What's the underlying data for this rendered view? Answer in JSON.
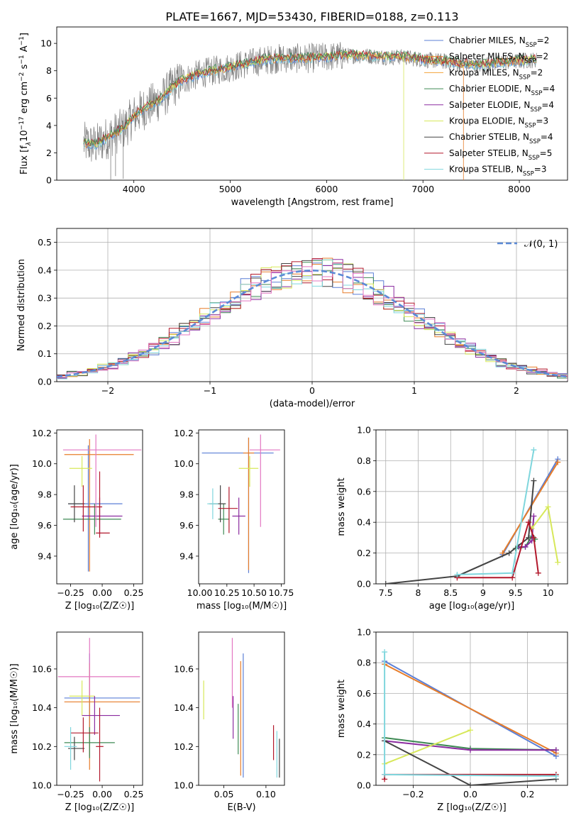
{
  "figure_title": "PLATE=1667, MJD=53430, FIBERID=0188, z=0.113",
  "colors": {
    "Chabrier MILES": "#5b7fd6",
    "Salpeter MILES": "#e77d2a",
    "Kroupa MILES": "#f2a33a",
    "Chabrier ELODIE": "#3f8a55",
    "Salpeter ELODIE": "#8b2ca0",
    "Kroupa ELODIE": "#d7e85a",
    "Chabrier STELIB": "#444444",
    "Salpeter STELIB": "#b2182b",
    "Kroupa STELIB": "#7fd6dd",
    "data": "#7f7f7f",
    "pink": "#e377c2",
    "normal_curve": "#5b8ad6"
  },
  "chart_data": [
    {
      "id": "spectrum",
      "type": "line",
      "xlabel": "wavelength [Angstrom, rest frame]",
      "ylabel_parts": [
        "Flux [f",
        "λ",
        "10",
        "−17",
        " erg cm",
        "−2",
        " s",
        "−1",
        " A",
        "−1",
        "]"
      ],
      "xlim": [
        3200,
        8500
      ],
      "ylim": [
        0,
        11.2
      ],
      "xticks": [
        4000,
        5000,
        6000,
        7000,
        8000
      ],
      "yticks": [
        0,
        2,
        4,
        6,
        8,
        10
      ],
      "legend_position": "top-right",
      "legend": [
        {
          "name": "Chabrier MILES",
          "nssp": "2"
        },
        {
          "name": "Salpeter MILES",
          "nssp": "2"
        },
        {
          "name": "Kroupa MILES",
          "nssp": "2"
        },
        {
          "name": "Chabrier ELODIE",
          "nssp": "4"
        },
        {
          "name": "Salpeter ELODIE",
          "nssp": "4"
        },
        {
          "name": "Kroupa ELODIE",
          "nssp": "3"
        },
        {
          "name": "Chabrier STELIB",
          "nssp": "4"
        },
        {
          "name": "Salpeter STELIB",
          "nssp": "5"
        },
        {
          "name": "Kroupa STELIB",
          "nssp": "3"
        }
      ],
      "nssp_label": "SSP",
      "continuum": [
        [
          3480,
          2.7
        ],
        [
          3600,
          2.55
        ],
        [
          3700,
          3.0
        ],
        [
          3800,
          3.4
        ],
        [
          3900,
          3.8
        ],
        [
          4000,
          4.7
        ],
        [
          4100,
          5.2
        ],
        [
          4200,
          5.6
        ],
        [
          4300,
          6.0
        ],
        [
          4400,
          6.8
        ],
        [
          4500,
          7.3
        ],
        [
          4700,
          7.8
        ],
        [
          4900,
          8.1
        ],
        [
          5100,
          8.4
        ],
        [
          5300,
          8.7
        ],
        [
          5500,
          8.9
        ],
        [
          5800,
          8.9
        ],
        [
          6000,
          9.0
        ],
        [
          6200,
          9.1
        ],
        [
          6400,
          9.1
        ],
        [
          6600,
          9.0
        ],
        [
          6800,
          9.0
        ],
        [
          7000,
          8.8
        ],
        [
          7200,
          8.7
        ],
        [
          7400,
          8.5
        ],
        [
          7600,
          8.4
        ],
        [
          7800,
          8.6
        ],
        [
          8000,
          8.7
        ],
        [
          8180,
          8.8
        ]
      ]
    },
    {
      "id": "residuals",
      "type": "histogram",
      "xlabel": "(data-model)/error",
      "ylabel": "Normed distribution",
      "xlim": [
        -2.5,
        2.5
      ],
      "ylim": [
        0,
        0.55
      ],
      "xticks": [
        -2,
        -1,
        0,
        1,
        2
      ],
      "xtick_labels": [
        "−2",
        "−1",
        "0",
        "1",
        "2"
      ],
      "yticks": [
        0,
        0.1,
        0.2,
        0.3,
        0.4,
        0.5
      ],
      "legend_label": "𝒩(0, 1)",
      "legend_position": "top-right",
      "grid": true
    },
    {
      "id": "age_vs_Z",
      "type": "errorbar",
      "xlabel": "Z [log₁₀(Z/Z☉)]",
      "ylabel": "age  [log₁₀(age/yr)]",
      "xlim": [
        -0.36,
        0.32
      ],
      "ylim": [
        9.22,
        10.22
      ],
      "xticks": [
        -0.25,
        0.0,
        0.25
      ],
      "xtick_labels": [
        "−0.25",
        "0.00",
        "0.25"
      ],
      "yticks": [
        9.4,
        9.6,
        9.8,
        10.0,
        10.2
      ],
      "points": [
        {
          "series": "Chabrier MILES",
          "x": -0.11,
          "xerr": [
            0.16,
            0.27
          ],
          "y": 9.74,
          "yerr": [
            0.44,
            0.38
          ]
        },
        {
          "series": "Salpeter MILES",
          "x": -0.1,
          "xerr": [
            0.2,
            0.35
          ],
          "y": 10.06,
          "yerr": [
            0.76,
            0.1
          ]
        },
        {
          "series": "Chabrier ELODIE",
          "x": -0.06,
          "xerr": [
            0.25,
            0.21
          ],
          "y": 9.64,
          "yerr": [
            0.1,
            0.1
          ]
        },
        {
          "series": "Salpeter ELODIE",
          "x": -0.02,
          "xerr": [
            0.14,
            0.18
          ],
          "y": 9.66,
          "yerr": [
            0.12,
            0.12
          ]
        },
        {
          "series": "Kroupa ELODIE",
          "x": -0.16,
          "xerr": [
            0.1,
            0.08
          ],
          "y": 9.97,
          "yerr": [
            0.12,
            0.08
          ]
        },
        {
          "series": "Chabrier STELIB",
          "x": -0.22,
          "xerr": [
            0.05,
            0.08
          ],
          "y": 9.74,
          "yerr": [
            0.12,
            0.12
          ]
        },
        {
          "series": "Salpeter STELIB",
          "x": -0.02,
          "xerr": [
            0.03,
            0.08
          ],
          "y": 9.55,
          "yerr": [
            0.03,
            0.4
          ]
        },
        {
          "series": "Salpeter STELIB",
          "x": -0.15,
          "xerr": [
            0.1,
            0.15
          ],
          "y": 9.72,
          "yerr": [
            0.16,
            0.14
          ]
        },
        {
          "series": "pink",
          "x": -0.05,
          "xerr": [
            0.26,
            0.36
          ],
          "y": 10.09,
          "yerr": [
            0.5,
            0.1
          ]
        }
      ]
    },
    {
      "id": "age_vs_mass",
      "type": "errorbar",
      "xlabel": "mass [log₁₀(M/M☉)]",
      "xlim": [
        9.99,
        10.78
      ],
      "ylim": [
        9.22,
        10.22
      ],
      "xticks": [
        10.0,
        10.25,
        10.5,
        10.75
      ],
      "xtick_labels": [
        "10.00",
        "10.25",
        "10.50",
        "10.75"
      ],
      "yticks": [
        9.4,
        9.6,
        9.8,
        10.0,
        10.2
      ],
      "points": [
        {
          "series": "Chabrier MILES",
          "x": 10.45,
          "xerr": [
            0.43,
            0.23
          ],
          "y": 10.07,
          "yerr": [
            0.78,
            0.1
          ]
        },
        {
          "series": "Salpeter MILES",
          "x": 10.45,
          "xerr": [
            0.05,
            0.05
          ],
          "y": 10.07,
          "yerr": [
            0.76,
            0.1
          ]
        },
        {
          "series": "Kroupa ELODIE",
          "x": 10.46,
          "xerr": [
            0.1,
            0.08
          ],
          "y": 9.97,
          "yerr": [
            0.12,
            0.08
          ]
        },
        {
          "series": "Salpeter ELODIE",
          "x": 10.36,
          "xerr": [
            0.06,
            0.06
          ],
          "y": 9.66,
          "yerr": [
            0.12,
            0.12
          ]
        },
        {
          "series": "Chabrier ELODIE",
          "x": 10.22,
          "xerr": [
            0.05,
            0.05
          ],
          "y": 9.64,
          "yerr": [
            0.1,
            0.1
          ]
        },
        {
          "series": "Chabrier STELIB",
          "x": 10.19,
          "xerr": [
            0.1,
            0.05
          ],
          "y": 9.74,
          "yerr": [
            0.12,
            0.12
          ]
        },
        {
          "series": "Salpeter STELIB",
          "x": 10.27,
          "xerr": [
            0.1,
            0.08
          ],
          "y": 9.71,
          "yerr": [
            0.16,
            0.14
          ]
        },
        {
          "series": "Kroupa STELIB",
          "x": 10.12,
          "xerr": [
            0.05,
            0.05
          ],
          "y": 9.74,
          "yerr": [
            0.1,
            0.1
          ]
        },
        {
          "series": "pink",
          "x": 10.56,
          "xerr": [
            0.1,
            0.18
          ],
          "y": 10.09,
          "yerr": [
            0.5,
            0.1
          ]
        }
      ]
    },
    {
      "id": "massweight_vs_age",
      "type": "line",
      "xlabel": "age  [log₁₀(age/yr)]",
      "ylabel": "mass weight",
      "xlim": [
        7.35,
        10.3
      ],
      "ylim": [
        0,
        1.0
      ],
      "xticks": [
        7.5,
        8.0,
        8.5,
        9.0,
        9.5,
        10.0
      ],
      "yticks": [
        0,
        0.2,
        0.4,
        0.6,
        0.8,
        1.0
      ],
      "grid": true,
      "series": [
        {
          "name": "Chabrier MILES",
          "points": [
            [
              9.3,
              0.19
            ],
            [
              10.15,
              0.81
            ]
          ]
        },
        {
          "name": "Salpeter MILES",
          "points": [
            [
              9.3,
              0.2
            ],
            [
              10.15,
              0.79
            ]
          ]
        },
        {
          "name": "Chabrier ELODIE",
          "points": [
            [
              9.5,
              0.23
            ],
            [
              9.65,
              0.24
            ],
            [
              9.75,
              0.31
            ],
            [
              9.8,
              0.29
            ]
          ]
        },
        {
          "name": "Salpeter ELODIE",
          "points": [
            [
              9.55,
              0.24
            ],
            [
              9.65,
              0.24
            ],
            [
              9.75,
              0.28
            ],
            [
              9.78,
              0.44
            ]
          ]
        },
        {
          "name": "Kroupa ELODIE",
          "points": [
            [
              9.75,
              0.36
            ],
            [
              10.0,
              0.5
            ],
            [
              10.15,
              0.14
            ]
          ]
        },
        {
          "name": "Chabrier STELIB",
          "points": [
            [
              7.5,
              0.0
            ],
            [
              8.6,
              0.05
            ],
            [
              9.4,
              0.2
            ],
            [
              9.7,
              0.3
            ],
            [
              9.78,
              0.67
            ]
          ]
        },
        {
          "name": "Salpeter STELIB",
          "points": [
            [
              8.6,
              0.04
            ],
            [
              9.45,
              0.04
            ],
            [
              9.7,
              0.4
            ],
            [
              9.78,
              0.3
            ],
            [
              9.85,
              0.07
            ]
          ]
        },
        {
          "name": "Kroupa STELIB",
          "points": [
            [
              8.6,
              0.06
            ],
            [
              9.45,
              0.07
            ],
            [
              9.78,
              0.87
            ]
          ]
        }
      ]
    },
    {
      "id": "mass_vs_Z",
      "type": "errorbar",
      "xlabel": "Z [log₁₀(Z/Z☉)]",
      "ylabel": "mass [log₁₀(M/M☉)]",
      "xlim": [
        -0.36,
        0.32
      ],
      "ylim": [
        10.0,
        10.79
      ],
      "xticks": [
        -0.25,
        0.0,
        0.25
      ],
      "xtick_labels": [
        "−0.25",
        "0.00",
        "0.25"
      ],
      "yticks": [
        10.0,
        10.2,
        10.4,
        10.6
      ],
      "points": [
        {
          "series": "Chabrier MILES",
          "x": -0.1,
          "xerr": [
            0.2,
            0.4
          ],
          "y": 10.45,
          "yerr": [
            0.3,
            0.23
          ]
        },
        {
          "series": "Salpeter MILES",
          "x": -0.1,
          "xerr": [
            0.2,
            0.4
          ],
          "y": 10.43,
          "yerr": [
            0.35,
            0.2
          ]
        },
        {
          "series": "Kroupa ELODIE",
          "x": -0.16,
          "xerr": [
            0.1,
            0.1
          ],
          "y": 10.46,
          "yerr": [
            0.1,
            0.08
          ]
        },
        {
          "series": "Salpeter ELODIE",
          "x": -0.06,
          "xerr": [
            0.1,
            0.2
          ],
          "y": 10.36,
          "yerr": [
            0.1,
            0.1
          ]
        },
        {
          "series": "Chabrier ELODIE",
          "x": -0.1,
          "xerr": [
            0.2,
            0.2
          ],
          "y": 10.22,
          "yerr": [
            0.08,
            0.08
          ]
        },
        {
          "series": "Chabrier STELIB",
          "x": -0.22,
          "xerr": [
            0.05,
            0.08
          ],
          "y": 10.19,
          "yerr": [
            0.06,
            0.06
          ]
        },
        {
          "series": "Salpeter STELIB",
          "x": -0.15,
          "xerr": [
            0.1,
            0.12
          ],
          "y": 10.27,
          "yerr": [
            0.1,
            0.08
          ]
        },
        {
          "series": "Salpeter STELIB",
          "x": -0.02,
          "xerr": [
            0.03,
            0.03
          ],
          "y": 10.2,
          "yerr": [
            0.18,
            0.2
          ]
        },
        {
          "series": "Kroupa STELIB",
          "x": -0.25,
          "xerr": [
            0.05,
            0.05
          ],
          "y": 10.2,
          "yerr": [
            0.12,
            0.1
          ]
        },
        {
          "series": "pink",
          "x": -0.1,
          "xerr": [
            0.25,
            0.4
          ],
          "y": 10.56,
          "yerr": [
            0.1,
            0.2
          ]
        }
      ]
    },
    {
      "id": "mass_vs_ebv",
      "type": "errorbar",
      "xlabel": "E(B-V)",
      "xlim": [
        0.02,
        0.122
      ],
      "ylim": [
        10.0,
        10.79
      ],
      "xticks": [
        0.05,
        0.1
      ],
      "xtick_labels": [
        "0.05",
        "0.10"
      ],
      "yticks": [
        10.0,
        10.2,
        10.4,
        10.6
      ],
      "points": [
        {
          "series": "Kroupa ELODIE",
          "x": 0.026,
          "y": 10.44,
          "yerr": [
            0.1,
            0.1
          ]
        },
        {
          "series": "pink",
          "x": 0.06,
          "y": 10.56,
          "yerr": [
            0.16,
            0.2
          ]
        },
        {
          "series": "Salpeter ELODIE",
          "x": 0.061,
          "y": 10.36,
          "yerr": [
            0.12,
            0.1
          ]
        },
        {
          "series": "Chabrier ELODIE",
          "x": 0.067,
          "y": 10.29,
          "yerr": [
            0.13,
            0.13
          ]
        },
        {
          "series": "Salpeter MILES",
          "x": 0.07,
          "y": 10.35,
          "yerr": [
            0.3,
            0.29
          ]
        },
        {
          "series": "Chabrier MILES",
          "x": 0.073,
          "y": 10.37,
          "yerr": [
            0.33,
            0.31
          ]
        },
        {
          "series": "Salpeter STELIB",
          "x": 0.109,
          "y": 10.22,
          "yerr": [
            0.09,
            0.09
          ]
        },
        {
          "series": "Kroupa STELIB",
          "x": 0.113,
          "y": 10.18,
          "yerr": [
            0.14,
            0.1
          ]
        },
        {
          "series": "Chabrier STELIB",
          "x": 0.116,
          "y": 10.14,
          "yerr": [
            0.1,
            0.1
          ]
        }
      ]
    },
    {
      "id": "massweight_vs_Z",
      "type": "line",
      "xlabel": "Z [log₁₀(Z/Z☉)]",
      "ylabel": "mass weight",
      "xlim": [
        -0.33,
        0.34
      ],
      "ylim": [
        0,
        1.0
      ],
      "xticks": [
        -0.2,
        0.0,
        0.2
      ],
      "xtick_labels": [
        "−0.2",
        "0.0",
        "0.2"
      ],
      "yticks": [
        0,
        0.2,
        0.4,
        0.6,
        0.8,
        1.0
      ],
      "grid": true,
      "series": [
        {
          "name": "Chabrier MILES",
          "points": [
            [
              -0.3,
              0.81
            ],
            [
              0.3,
              0.19
            ]
          ]
        },
        {
          "name": "Salpeter MILES",
          "points": [
            [
              -0.3,
              0.79
            ],
            [
              0.3,
              0.21
            ]
          ]
        },
        {
          "name": "Chabrier ELODIE",
          "points": [
            [
              -0.3,
              0.31
            ],
            [
              0.0,
              0.24
            ],
            [
              0.3,
              0.23
            ]
          ]
        },
        {
          "name": "Salpeter ELODIE",
          "points": [
            [
              -0.3,
              0.29
            ],
            [
              0.0,
              0.23
            ],
            [
              0.3,
              0.23
            ]
          ]
        },
        {
          "name": "Kroupa ELODIE",
          "points": [
            [
              -0.3,
              0.14
            ],
            [
              0.0,
              0.36
            ]
          ]
        },
        {
          "name": "Chabrier STELIB",
          "points": [
            [
              -0.3,
              0.29
            ],
            [
              0.0,
              0.0
            ],
            [
              0.3,
              0.04
            ]
          ]
        },
        {
          "name": "Salpeter STELIB",
          "points": [
            [
              -0.3,
              0.04
            ],
            [
              -0.3,
              0.07
            ],
            [
              0.3,
              0.07
            ]
          ]
        },
        {
          "name": "Kroupa STELIB",
          "points": [
            [
              -0.3,
              0.87
            ],
            [
              -0.3,
              0.07
            ],
            [
              0.3,
              0.06
            ]
          ]
        }
      ]
    }
  ]
}
